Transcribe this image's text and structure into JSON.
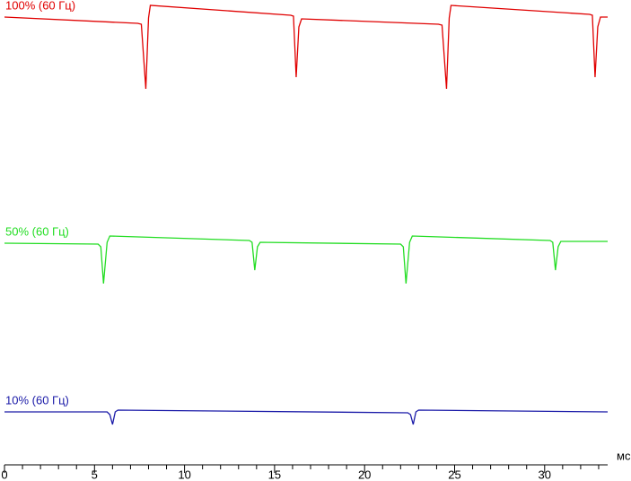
{
  "chart_data": {
    "type": "line",
    "xlabel": "мс",
    "xlim": [
      0,
      33.5
    ],
    "ylim": [
      0,
      518
    ],
    "xticks": [
      0,
      5,
      10,
      15,
      20,
      25,
      30
    ],
    "minor_xticks": [
      1,
      2,
      3,
      4,
      6,
      7,
      8,
      9,
      11,
      12,
      13,
      14,
      16,
      17,
      18,
      19,
      21,
      22,
      23,
      24,
      26,
      27,
      28,
      29,
      31,
      32,
      33
    ],
    "series": [
      {
        "name": "100% (60 Гц)",
        "color": "#e00000",
        "x": [
          0,
          7.4,
          7.6,
          7.85,
          8.0,
          8.1,
          15.9,
          16.05,
          16.2,
          16.35,
          16.5,
          24.1,
          24.3,
          24.55,
          24.7,
          24.8,
          32.5,
          32.65,
          32.8,
          32.95,
          33.1,
          33.5
        ],
        "values": [
          499,
          492,
          491,
          419,
          498,
          512,
          501,
          500,
          432,
          488,
          497,
          491,
          490,
          419,
          498,
          512,
          502,
          501,
          432,
          488,
          499,
          499
        ]
      },
      {
        "name": "50% (60 Гц)",
        "color": "#22dd22",
        "x": [
          0,
          5.2,
          5.35,
          5.5,
          5.7,
          5.85,
          13.6,
          13.75,
          13.9,
          14.05,
          14.2,
          22.0,
          22.15,
          22.3,
          22.5,
          22.65,
          30.3,
          30.45,
          30.6,
          30.75,
          30.9,
          33.5
        ],
        "values": [
          247,
          246,
          243,
          202,
          248,
          255,
          250,
          248,
          217,
          243,
          248,
          246,
          243,
          202,
          248,
          255,
          250,
          248,
          217,
          243,
          249,
          249
        ]
      },
      {
        "name": "10% (60 Гц)",
        "color": "#1a1aa8",
        "x": [
          0,
          5.7,
          5.85,
          6.0,
          6.15,
          6.3,
          22.4,
          22.55,
          22.7,
          22.85,
          23.0,
          33.5
        ],
        "values": [
          59,
          59,
          56,
          45,
          59,
          61,
          58,
          56,
          45,
          59,
          61,
          59
        ]
      }
    ]
  }
}
